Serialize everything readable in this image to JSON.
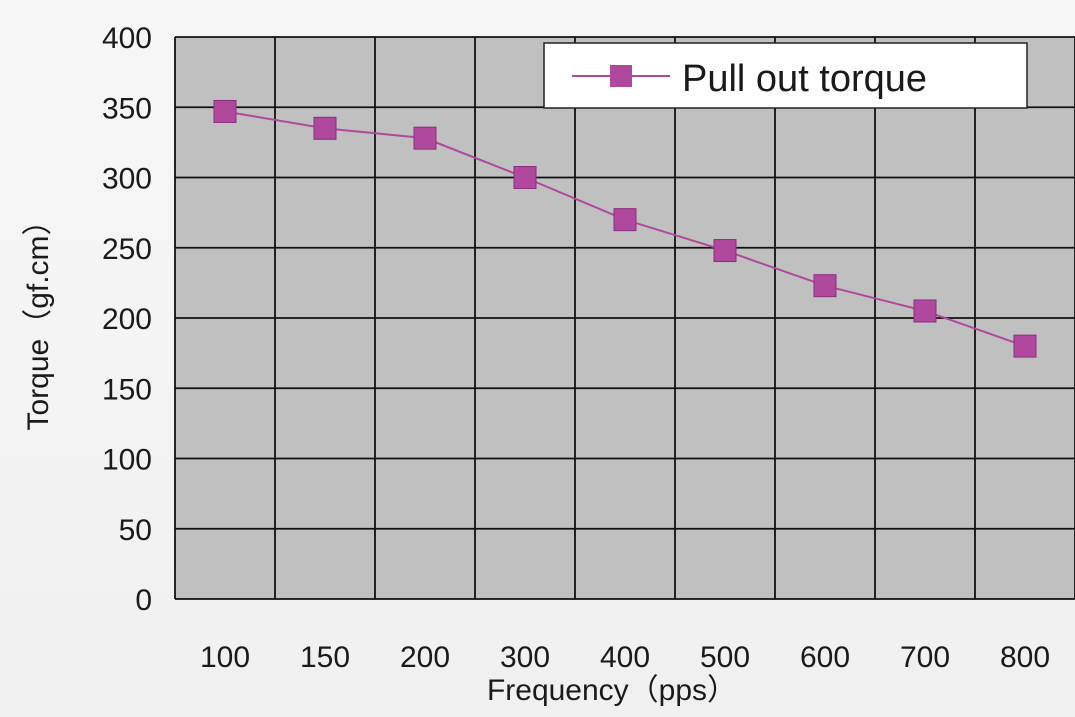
{
  "chart_data": {
    "type": "line",
    "title": "",
    "xlabel": "Frequency（pps）",
    "ylabel": "Torque（gf.cm）",
    "categories": [
      "100",
      "150",
      "200",
      "300",
      "400",
      "500",
      "600",
      "700",
      "800"
    ],
    "y_ticks": [
      "0",
      "50",
      "100",
      "150",
      "200",
      "250",
      "300",
      "350",
      "400"
    ],
    "ylim": [
      0,
      400
    ],
    "grid": true,
    "legend_position": "top-right",
    "series": [
      {
        "name": "Pull out torque",
        "color": "#b0489e",
        "marker": "square",
        "values": [
          347,
          335,
          328,
          300,
          270,
          248,
          223,
          205,
          180
        ]
      }
    ],
    "plot_background": "#c0c0c0"
  }
}
